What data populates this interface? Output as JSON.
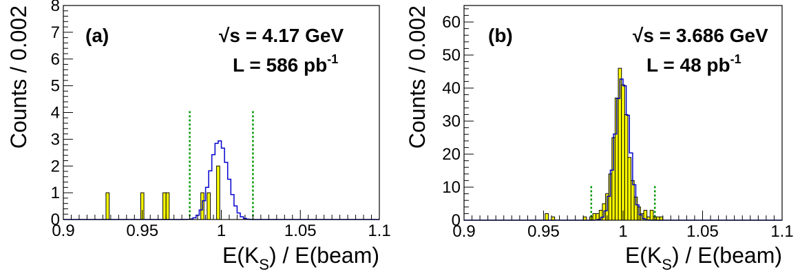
{
  "chart_data": [
    {
      "type": "bar",
      "panel_label": "(a)",
      "energy_text": "√s = 4.17 GeV",
      "luminosity_text": "L = 586 pb",
      "luminosity_exponent": "-1",
      "ylabel": "Counts / 0.002",
      "xlabel_main": "E(K",
      "xlabel_sub": "S",
      "xlabel_rest": ") / E(beam)",
      "xlim": [
        0.9,
        1.1
      ],
      "ylim": [
        0,
        8
      ],
      "xticks": [
        0.9,
        0.95,
        1.0,
        1.05,
        1.1
      ],
      "xtick_labels": [
        "0.9",
        "0.95",
        "1",
        "1.05",
        "1.1"
      ],
      "yticks": [
        0,
        1,
        2,
        3,
        4,
        5,
        6,
        7,
        8
      ],
      "ytick_labels": [
        "0",
        "1",
        "2",
        "3",
        "4",
        "5",
        "6",
        "7",
        "8"
      ],
      "bin_width": 0.002,
      "data_bins": [
        {
          "x": 0.928,
          "count": 1
        },
        {
          "x": 0.95,
          "count": 1
        },
        {
          "x": 0.964,
          "count": 1
        },
        {
          "x": 0.966,
          "count": 1
        },
        {
          "x": 0.988,
          "count": 1
        },
        {
          "x": 0.992,
          "count": 1
        },
        {
          "x": 0.998,
          "count": 2
        }
      ],
      "mc_curve": {
        "mean": 0.9985,
        "sigma": 0.0056,
        "peak": 2.95
      },
      "signal_window": [
        0.98,
        1.02
      ],
      "colors": {
        "data_fill": "#ffff00",
        "mc_line": "#0000cc",
        "window_line": "#009900"
      }
    },
    {
      "type": "bar",
      "panel_label": "(b)",
      "energy_text": "√s = 3.686 GeV",
      "luminosity_text": "L = 48 pb",
      "luminosity_exponent": "-1",
      "ylabel": "Counts / 0.002",
      "xlabel_main": "E(K",
      "xlabel_sub": "S",
      "xlabel_rest": ") / E(beam)",
      "xlim": [
        0.9,
        1.1
      ],
      "ylim": [
        0,
        65
      ],
      "xticks": [
        0.9,
        0.95,
        1.0,
        1.05,
        1.1
      ],
      "xtick_labels": [
        "0.9",
        "0.95",
        "1",
        "1.05",
        "1.1"
      ],
      "yticks": [
        0,
        10,
        20,
        30,
        40,
        50,
        60
      ],
      "ytick_labels": [
        "0",
        "10",
        "20",
        "30",
        "40",
        "50",
        "60"
      ],
      "bin_width": 0.002,
      "data_bins": [
        {
          "x": 0.952,
          "count": 2
        },
        {
          "x": 0.956,
          "count": 1
        },
        {
          "x": 0.976,
          "count": 1
        },
        {
          "x": 0.98,
          "count": 1
        },
        {
          "x": 0.982,
          "count": 2
        },
        {
          "x": 0.984,
          "count": 2
        },
        {
          "x": 0.986,
          "count": 3
        },
        {
          "x": 0.988,
          "count": 5
        },
        {
          "x": 0.99,
          "count": 8
        },
        {
          "x": 0.992,
          "count": 14
        },
        {
          "x": 0.994,
          "count": 25
        },
        {
          "x": 0.996,
          "count": 37
        },
        {
          "x": 0.998,
          "count": 46
        },
        {
          "x": 1.0,
          "count": 41
        },
        {
          "x": 1.002,
          "count": 32
        },
        {
          "x": 1.004,
          "count": 19
        },
        {
          "x": 1.006,
          "count": 12
        },
        {
          "x": 1.008,
          "count": 7
        },
        {
          "x": 1.01,
          "count": 4
        },
        {
          "x": 1.012,
          "count": 2
        },
        {
          "x": 1.014,
          "count": 3
        },
        {
          "x": 1.016,
          "count": 1
        },
        {
          "x": 1.018,
          "count": 3
        },
        {
          "x": 1.02,
          "count": 1
        },
        {
          "x": 1.022,
          "count": 1
        },
        {
          "x": 1.024,
          "count": 1
        }
      ],
      "mc_curve": {
        "mean": 0.9995,
        "sigma": 0.0045,
        "peak": 43
      },
      "signal_window": [
        0.98,
        1.02
      ],
      "colors": {
        "data_fill": "#ffff00",
        "mc_line": "#0000cc",
        "window_line": "#009900"
      }
    }
  ]
}
